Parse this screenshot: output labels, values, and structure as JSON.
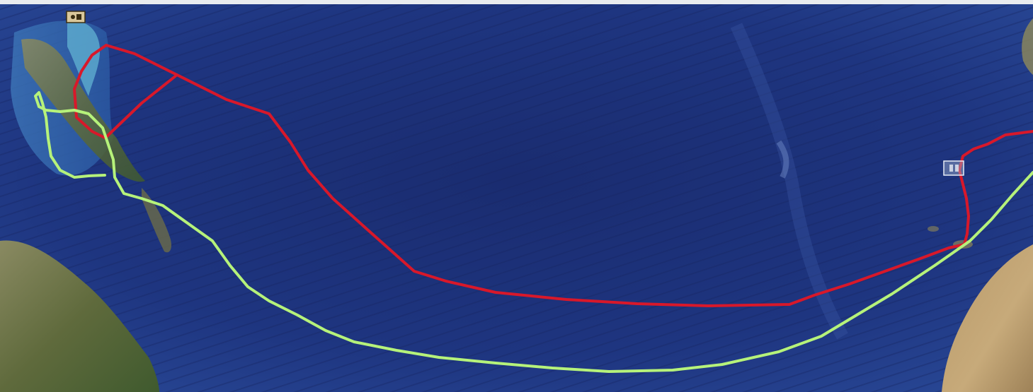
{
  "map": {
    "basemap": "satellite-ocean",
    "ocean_color": "#1b2f78",
    "land_color": "#7a7350"
  },
  "routes": [
    {
      "id": "route-red",
      "color": "#d8182a"
    },
    {
      "id": "route-green",
      "color": "#b6f27a"
    }
  ],
  "markers": [
    {
      "id": "marker-west",
      "icon": "placemark-icon"
    },
    {
      "id": "marker-east",
      "icon": "placemark-icon"
    }
  ]
}
